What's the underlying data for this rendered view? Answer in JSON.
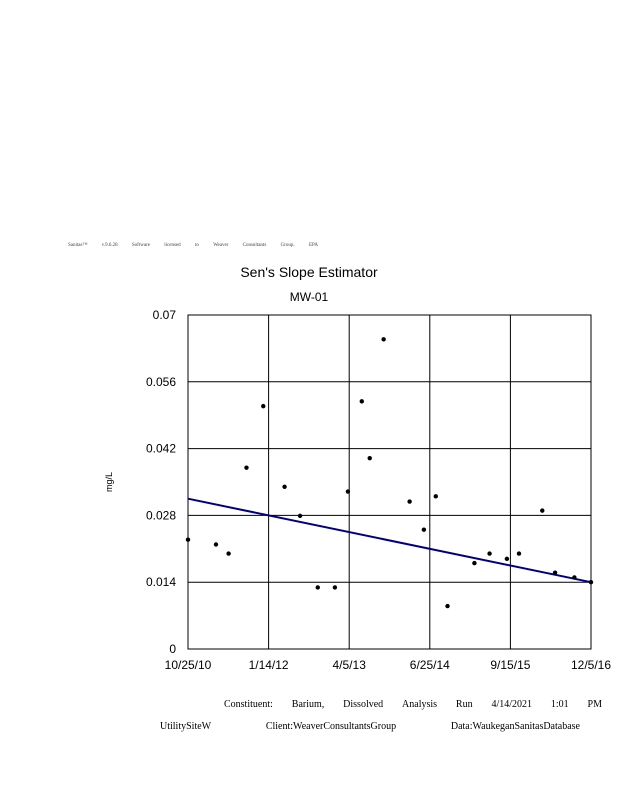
{
  "header_line": [
    "Sanitas™",
    "v.9.6.28",
    "Software",
    "licensed",
    "to",
    "Weaver",
    "Consultants",
    "Group.",
    "EPA"
  ],
  "chart_data": {
    "type": "scatter",
    "title": "Sen's Slope Estimator",
    "subtitle": "MW-01",
    "ylabel": "mg/L",
    "xlabel": "",
    "ylim": [
      0,
      0.07
    ],
    "yticks": [
      "0",
      "0.014",
      "0.028",
      "0.042",
      "0.056",
      "0.07"
    ],
    "xlim": [
      "2010-10-25",
      "2016-12-05"
    ],
    "xticks": [
      "10/25/10",
      "1/14/12",
      "4/5/13",
      "6/25/14",
      "9/15/15",
      "12/5/16"
    ],
    "grid": true,
    "points": [
      {
        "x": "2010-10-25",
        "y": 0.0229
      },
      {
        "x": "2011-03-29",
        "y": 0.0219
      },
      {
        "x": "2011-06-07",
        "y": 0.02
      },
      {
        "x": "2011-09-14",
        "y": 0.038
      },
      {
        "x": "2011-12-16",
        "y": 0.0509
      },
      {
        "x": "2012-04-12",
        "y": 0.034
      },
      {
        "x": "2012-07-07",
        "y": 0.0279
      },
      {
        "x": "2012-10-13",
        "y": 0.0129
      },
      {
        "x": "2013-01-16",
        "y": 0.0129
      },
      {
        "x": "2013-03-29",
        "y": 0.033
      },
      {
        "x": "2013-06-14",
        "y": 0.0519
      },
      {
        "x": "2013-07-28",
        "y": 0.04
      },
      {
        "x": "2013-10-13",
        "y": 0.0649
      },
      {
        "x": "2014-03-06",
        "y": 0.0309
      },
      {
        "x": "2014-05-24",
        "y": 0.025
      },
      {
        "x": "2014-07-29",
        "y": 0.032
      },
      {
        "x": "2014-10-02",
        "y": 0.009
      },
      {
        "x": "2015-02-28",
        "y": 0.018
      },
      {
        "x": "2015-05-23",
        "y": 0.02
      },
      {
        "x": "2015-08-27",
        "y": 0.0189
      },
      {
        "x": "2015-11-02",
        "y": 0.02
      },
      {
        "x": "2016-03-10",
        "y": 0.029
      },
      {
        "x": "2016-05-20",
        "y": 0.016
      },
      {
        "x": "2016-09-04",
        "y": 0.015
      },
      {
        "x": "2016-12-05",
        "y": 0.014
      }
    ],
    "trend_line": [
      {
        "x": "2010-10-25",
        "y": 0.0315
      },
      {
        "x": "2016-12-05",
        "y": 0.014
      }
    ],
    "colors": {
      "trend": "#00007f",
      "points": "#000000",
      "grid": "#000000"
    }
  },
  "footer": {
    "constituent_label": "Constituent:",
    "constituent_word1": "Barium,",
    "constituent_word2": "Dissolved",
    "analysis_label": "Analysis",
    "run_label": "Run",
    "run_date": "4/14/2021",
    "run_time": "1:01",
    "run_ampm": "PM",
    "site": "UtilitySiteW",
    "client": "Client:WeaverConsultantsGroup",
    "data_source": "Data:WaukeganSanitasDatabase"
  }
}
